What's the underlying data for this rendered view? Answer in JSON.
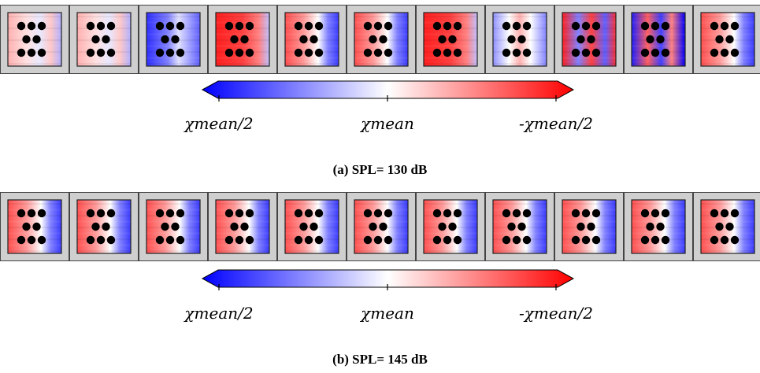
{
  "figures": [
    {
      "id": "a",
      "caption": "(a) SPL= 130 dB",
      "colorbar": {
        "colors": [
          "#0000ff",
          "#ffffff",
          "#ff0000"
        ],
        "ticks": [
          "χmean/2",
          "χmean",
          "-χmean/2"
        ]
      },
      "panels": [
        {
          "pattern": "mixed-weak"
        },
        {
          "pattern": "mixed-weak"
        },
        {
          "pattern": "blue-dominant"
        },
        {
          "pattern": "red-dominant"
        },
        {
          "pattern": "red-left-blue-right"
        },
        {
          "pattern": "red-left-blue-right"
        },
        {
          "pattern": "red-dominant"
        },
        {
          "pattern": "mixed-streaks"
        },
        {
          "pattern": "mixed-strong"
        },
        {
          "pattern": "blue-streaks"
        },
        {
          "pattern": "red-left-blue-right"
        }
      ]
    },
    {
      "id": "b",
      "caption": "(b) SPL= 145 dB",
      "colorbar": {
        "colors": [
          "#0000ff",
          "#ffffff",
          "#ff0000"
        ],
        "ticks": [
          "χmean/2",
          "χmean",
          "-χmean/2"
        ]
      },
      "panels": [
        {
          "pattern": "red-left-blue-right"
        },
        {
          "pattern": "red-left-blue-right"
        },
        {
          "pattern": "red-left-blue-right"
        },
        {
          "pattern": "red-left-blue-right"
        },
        {
          "pattern": "red-left-blue-right"
        },
        {
          "pattern": "red-left-blue-right"
        },
        {
          "pattern": "red-left-blue-right"
        },
        {
          "pattern": "red-left-blue-right"
        },
        {
          "pattern": "red-left-blue-right"
        },
        {
          "pattern": "red-left-blue-right"
        },
        {
          "pattern": "red-left-blue-right"
        }
      ]
    }
  ]
}
